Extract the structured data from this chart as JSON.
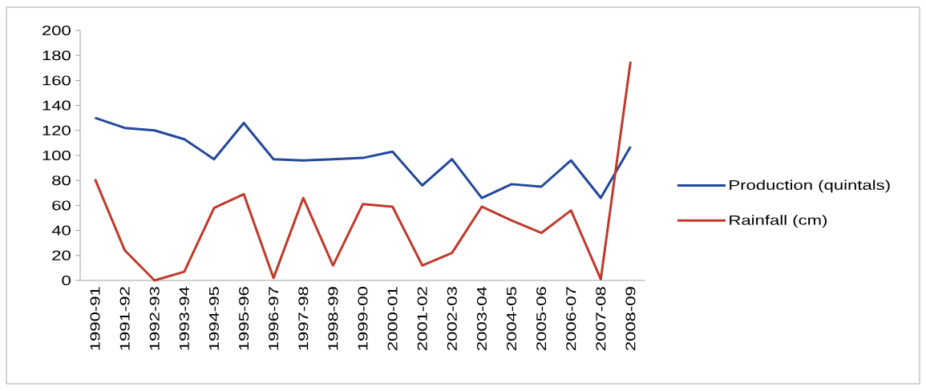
{
  "chart_data": {
    "type": "line",
    "categories": [
      "1990-91",
      "1991-92",
      "1992-93",
      "1993-94",
      "1994-95",
      "1995-96",
      "1996-97",
      "1997-98",
      "1998-99",
      "1999-00",
      "2000-01",
      "2001-02",
      "2002-03",
      "2003-04",
      "2004-05",
      "2005-06",
      "2006-07",
      "2007-08",
      "2008-09"
    ],
    "series": [
      {
        "name": "Production (quintals)",
        "color": "#23479b",
        "values": [
          130,
          122,
          120,
          113,
          97,
          126,
          97,
          96,
          97,
          98,
          103,
          76,
          97,
          66,
          77,
          75,
          96,
          66,
          107
        ]
      },
      {
        "name": "Rainfall (cm)",
        "color": "#c0392b",
        "values": [
          81,
          24,
          0,
          7,
          58,
          69,
          2,
          66,
          12,
          61,
          59,
          12,
          22,
          59,
          48,
          38,
          56,
          1,
          175
        ]
      }
    ],
    "ylim": [
      0,
      200
    ],
    "yticks": [
      0,
      20,
      40,
      60,
      80,
      100,
      120,
      140,
      160,
      180,
      200
    ],
    "legend": "right",
    "marker": "none",
    "line_style": "solid"
  }
}
